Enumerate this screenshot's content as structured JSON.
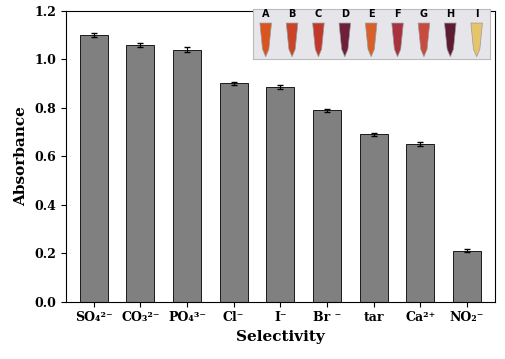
{
  "chart_data": {
    "type": "bar",
    "x_label": "Selectivity",
    "y_label": "Absorbance",
    "categories": [
      "SO₄²⁻",
      "CO₃²⁻",
      "PO₄³⁻",
      "Cl⁻",
      "I⁻",
      "Br ⁻",
      "tar",
      "Ca²⁺",
      "NO₂⁻"
    ],
    "values": [
      1.1,
      1.06,
      1.04,
      0.9,
      0.885,
      0.79,
      0.69,
      0.65,
      0.21
    ],
    "errors": [
      0.008,
      0.009,
      0.009,
      0.007,
      0.007,
      0.006,
      0.007,
      0.007,
      0.005
    ],
    "color": "#808080",
    "ylim": [
      0,
      1.2
    ],
    "yticks": [
      {
        "value": 0,
        "label": "0.0"
      },
      {
        "value": 0.2,
        "label": "0.2"
      },
      {
        "value": 0.4,
        "label": "0.4"
      },
      {
        "value": 0.6,
        "label": "0.6"
      },
      {
        "value": 0.8,
        "label": "0.8"
      },
      {
        "value": 1.0,
        "label": "1.0"
      },
      {
        "value": 1.2,
        "label": "1.2"
      }
    ],
    "grid": false,
    "annotations": [
      "A",
      "B",
      "C",
      "D",
      "E",
      "F",
      "G",
      "H",
      "I"
    ]
  }
}
